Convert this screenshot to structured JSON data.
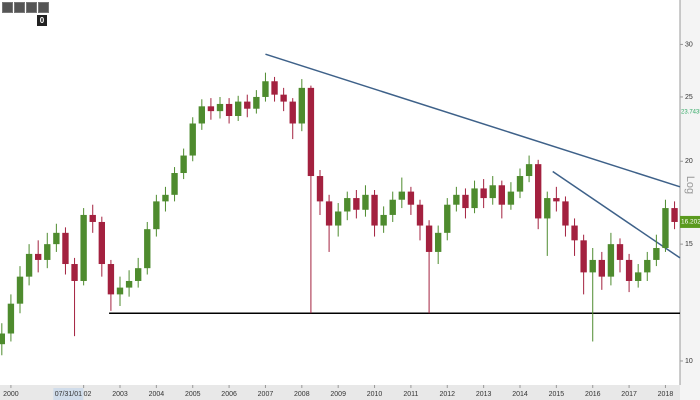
{
  "chart_data": {
    "type": "candlestick",
    "y_axis_label": "Log",
    "log_scale": true,
    "xlim": [
      1999.7,
      2018.4
    ],
    "ylim": [
      9.2,
      35
    ],
    "yticks": [
      10,
      15,
      20,
      25,
      30
    ],
    "xticks": [
      2000,
      2002,
      2003,
      2004,
      2005,
      2006,
      2007,
      2008,
      2009,
      2010,
      2011,
      2012,
      2013,
      2014,
      2015,
      2016,
      2017,
      2018
    ],
    "crosshair_x": {
      "value": 2001.58,
      "label": "07/31/01"
    },
    "up_color": "#4e8b2e",
    "down_color": "#a3213f",
    "x": [
      1999.75,
      2000.0,
      2000.25,
      2000.5,
      2000.75,
      2001.0,
      2001.25,
      2001.5,
      2001.75,
      2002.0,
      2002.25,
      2002.5,
      2002.75,
      2003.0,
      2003.25,
      2003.5,
      2003.75,
      2004.0,
      2004.25,
      2004.5,
      2004.75,
      2005.0,
      2005.25,
      2005.5,
      2005.75,
      2006.0,
      2006.25,
      2006.5,
      2006.75,
      2007.0,
      2007.25,
      2007.5,
      2007.75,
      2008.0,
      2008.25,
      2008.5,
      2008.75,
      2009.0,
      2009.25,
      2009.5,
      2009.75,
      2010.0,
      2010.25,
      2010.5,
      2010.75,
      2011.0,
      2011.25,
      2011.5,
      2011.75,
      2012.0,
      2012.25,
      2012.5,
      2012.75,
      2013.0,
      2013.25,
      2013.5,
      2013.75,
      2014.0,
      2014.25,
      2014.5,
      2014.75,
      2015.0,
      2015.25,
      2015.5,
      2015.75,
      2016.0,
      2016.25,
      2016.5,
      2016.75,
      2017.0,
      2017.25,
      2017.5,
      2017.75,
      2018.0,
      2018.25
    ],
    "open": [
      10.6,
      11.0,
      12.2,
      13.4,
      14.5,
      14.2,
      15.0,
      15.6,
      14.0,
      13.2,
      16.6,
      16.2,
      14.0,
      12.6,
      12.9,
      13.2,
      13.8,
      15.8,
      17.4,
      17.8,
      19.2,
      20.4,
      22.8,
      24.2,
      23.8,
      24.4,
      23.4,
      24.6,
      24.0,
      25.0,
      26.4,
      25.2,
      24.6,
      22.8,
      25.8,
      19.0,
      17.4,
      16.0,
      16.8,
      17.6,
      16.9,
      17.8,
      16.0,
      16.6,
      17.5,
      18.0,
      17.2,
      16.0,
      14.6,
      15.6,
      17.2,
      17.8,
      17.0,
      18.2,
      17.6,
      18.4,
      17.2,
      18.0,
      19.0,
      19.8,
      16.4,
      17.6,
      17.4,
      16.0,
      15.2,
      13.6,
      14.2,
      13.4,
      15.0,
      14.2,
      13.2,
      13.6,
      14.2,
      14.8,
      17.0
    ],
    "high": [
      11.4,
      12.6,
      13.9,
      15.0,
      15.2,
      15.6,
      16.1,
      15.9,
      14.3,
      17.0,
      17.2,
      16.5,
      14.2,
      13.4,
      13.7,
      14.3,
      16.2,
      17.8,
      18.3,
      19.6,
      20.9,
      23.3,
      24.8,
      24.9,
      25.0,
      24.9,
      25.1,
      25.2,
      25.6,
      27.2,
      26.8,
      25.8,
      24.9,
      26.6,
      26.0,
      19.4,
      17.8,
      17.3,
      18.0,
      18.1,
      18.4,
      18.1,
      17.1,
      18.0,
      18.9,
      18.3,
      17.5,
      16.3,
      16.0,
      17.6,
      18.3,
      18.2,
      18.7,
      18.8,
      19.0,
      18.7,
      18.6,
      19.5,
      20.4,
      20.1,
      18.0,
      18.3,
      17.7,
      16.4,
      15.5,
      14.8,
      14.6,
      15.6,
      15.3,
      14.5,
      14.0,
      14.6,
      15.5,
      17.5,
      17.4
    ],
    "low": [
      10.2,
      10.7,
      11.8,
      13.0,
      13.6,
      13.8,
      14.6,
      13.5,
      10.9,
      13.0,
      15.6,
      13.4,
      11.9,
      12.1,
      12.5,
      12.9,
      13.5,
      15.4,
      16.8,
      17.4,
      18.8,
      20.0,
      22.3,
      23.1,
      23.2,
      22.8,
      23.0,
      23.3,
      23.6,
      24.6,
      24.6,
      23.8,
      21.6,
      22.2,
      11.8,
      16.6,
      14.6,
      15.4,
      16.3,
      16.4,
      16.5,
      15.4,
      15.6,
      16.2,
      17.0,
      16.6,
      15.2,
      11.8,
      14.0,
      15.2,
      16.8,
      16.4,
      16.7,
      17.0,
      17.2,
      16.4,
      16.9,
      17.6,
      18.6,
      15.8,
      14.4,
      16.8,
      15.4,
      14.4,
      12.6,
      10.7,
      12.8,
      13.0,
      13.6,
      12.7,
      12.9,
      13.2,
      13.9,
      14.6,
      15.8
    ],
    "close": [
      11.0,
      12.2,
      13.4,
      14.5,
      14.2,
      15.0,
      15.6,
      14.0,
      13.2,
      16.6,
      16.2,
      14.0,
      12.6,
      12.9,
      13.2,
      13.8,
      15.8,
      17.4,
      17.8,
      19.2,
      20.4,
      22.8,
      24.2,
      23.8,
      24.4,
      23.4,
      24.6,
      24.0,
      25.0,
      26.4,
      25.2,
      24.6,
      22.8,
      25.8,
      19.0,
      17.4,
      16.0,
      16.8,
      17.6,
      16.9,
      17.8,
      16.0,
      16.6,
      17.5,
      18.0,
      17.2,
      16.0,
      14.6,
      15.6,
      17.2,
      17.8,
      17.0,
      18.2,
      17.6,
      18.4,
      17.2,
      18.0,
      19.0,
      19.8,
      16.4,
      17.6,
      17.4,
      16.0,
      15.2,
      13.6,
      14.2,
      13.4,
      15.0,
      14.2,
      13.2,
      13.6,
      14.2,
      14.8,
      17.0,
      16.2
    ],
    "trendlines": [
      {
        "color": "#3e6189",
        "x": [
          2007.0,
          2018.4
        ],
        "y": [
          29,
          18.3
        ]
      },
      {
        "color": "#3e6189",
        "x": [
          2014.9,
          2018.4
        ],
        "y": [
          19.3,
          14.3
        ]
      },
      {
        "color": "#000000",
        "x": [
          2002.7,
          2018.4
        ],
        "y": [
          11.8,
          11.8
        ]
      }
    ],
    "marker_value": 23.7435,
    "last_price": 16.202,
    "last_price_color": "#5a9a1e"
  },
  "toolbar": {
    "badge": "0"
  }
}
